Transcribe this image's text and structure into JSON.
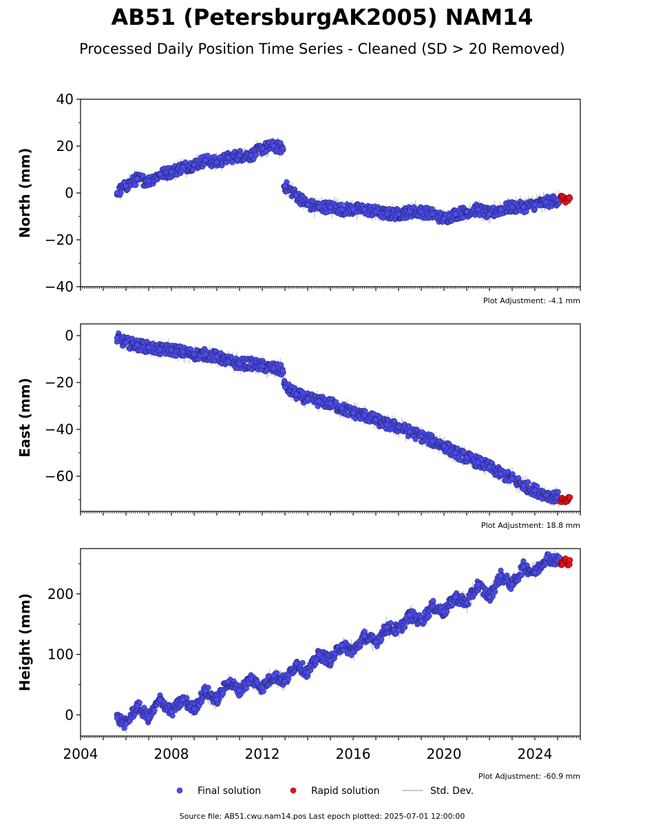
{
  "figure": {
    "title": "AB51 (PetersburgAK2005) NAM14",
    "subtitle": "Processed Daily Position Time Series - Cleaned (SD > 20 Removed)",
    "source_note": "Source file: AB51.cwu.nam14.pos  Last epoch plotted: 2025-07-01 12:00:00"
  },
  "legend": {
    "final": "Final solution",
    "rapid": "Rapid solution",
    "std": "Std. Dev."
  },
  "colors": {
    "final": "#4b4bf0",
    "final_edge": "#1a1a3a",
    "rapid": "#e8141b",
    "std": "#b8b8b8"
  },
  "chart_data": [
    {
      "type": "scatter",
      "ylabel": "North (mm)",
      "note": "Plot Adjustment: -4.1 mm",
      "xlim": [
        2004,
        2026
      ],
      "ylim": [
        -40,
        40
      ],
      "yticks": [
        -40,
        -20,
        0,
        20,
        40
      ],
      "xtick_labels": [],
      "grid": false,
      "series": [
        {
          "name": "Final solution",
          "x": [
            2005.6,
            2006.0,
            2006.5,
            2007.0,
            2007.5,
            2008.0,
            2008.5,
            2009.0,
            2009.5,
            2010.0,
            2010.5,
            2011.0,
            2011.5,
            2012.0,
            2012.5,
            2012.9,
            2013.0,
            2013.5,
            2014.0,
            2014.5,
            2015.0,
            2015.5,
            2016.0,
            2016.5,
            2017.0,
            2017.5,
            2018.0,
            2018.5,
            2019.0,
            2019.5,
            2020.0,
            2020.5,
            2021.0,
            2021.5,
            2022.0,
            2022.5,
            2023.0,
            2023.5,
            2024.0,
            2024.5,
            2025.0
          ],
          "y": [
            0,
            3,
            6,
            5,
            8,
            9,
            11,
            12,
            14,
            13,
            15,
            16,
            16,
            19,
            20,
            19,
            3,
            -1,
            -5,
            -6,
            -6,
            -7,
            -7,
            -7,
            -8,
            -9,
            -9,
            -8,
            -8,
            -9,
            -11,
            -9,
            -8,
            -7,
            -9,
            -7,
            -6,
            -6,
            -5,
            -4,
            -3
          ]
        },
        {
          "name": "Rapid solution",
          "x": [
            2025.2,
            2025.35,
            2025.5
          ],
          "y": [
            -2,
            -3,
            -3
          ]
        }
      ]
    },
    {
      "type": "scatter",
      "ylabel": "East (mm)",
      "note": "Plot Adjustment: 18.8 mm",
      "xlim": [
        2004,
        2026
      ],
      "ylim": [
        -75,
        5
      ],
      "yticks": [
        -60,
        -40,
        -20,
        0
      ],
      "xtick_labels": [],
      "grid": false,
      "series": [
        {
          "name": "Final solution",
          "x": [
            2005.6,
            2006.0,
            2006.5,
            2007.0,
            2007.5,
            2008.0,
            2008.5,
            2009.0,
            2009.5,
            2010.0,
            2010.5,
            2011.0,
            2011.5,
            2012.0,
            2012.5,
            2012.9,
            2013.0,
            2013.5,
            2014.0,
            2014.5,
            2015.0,
            2015.5,
            2016.0,
            2016.5,
            2017.0,
            2017.5,
            2018.0,
            2018.5,
            2019.0,
            2019.5,
            2020.0,
            2020.5,
            2021.0,
            2021.5,
            2022.0,
            2022.5,
            2023.0,
            2023.5,
            2024.0,
            2024.5,
            2025.0
          ],
          "y": [
            -1,
            -3,
            -4,
            -5,
            -6,
            -6,
            -7,
            -8,
            -8,
            -9,
            -11,
            -12,
            -12,
            -13,
            -14,
            -15,
            -22,
            -25,
            -27,
            -28,
            -29,
            -31,
            -33,
            -34,
            -36,
            -38,
            -39,
            -41,
            -43,
            -45,
            -47,
            -50,
            -52,
            -54,
            -56,
            -59,
            -61,
            -64,
            -66,
            -68,
            -69
          ]
        },
        {
          "name": "Rapid solution",
          "x": [
            2025.2,
            2025.35,
            2025.5
          ],
          "y": [
            -70,
            -71,
            -70
          ]
        }
      ]
    },
    {
      "type": "scatter",
      "ylabel": "Height (mm)",
      "note": "Plot Adjustment: -60.9 mm",
      "xlim": [
        2004,
        2026
      ],
      "ylim": [
        -35,
        275
      ],
      "yticks": [
        0,
        100,
        200
      ],
      "xtick_labels": [
        "2004",
        "2008",
        "2012",
        "2016",
        "2020",
        "2024"
      ],
      "xtick_values": [
        2004,
        2008,
        2012,
        2016,
        2020,
        2024
      ],
      "grid": false,
      "series": [
        {
          "name": "Final solution",
          "x": [
            2005.6,
            2006.0,
            2006.5,
            2007.0,
            2007.5,
            2008.0,
            2008.5,
            2009.0,
            2009.5,
            2010.0,
            2010.5,
            2011.0,
            2011.5,
            2012.0,
            2012.5,
            2013.0,
            2013.5,
            2014.0,
            2014.5,
            2015.0,
            2015.5,
            2016.0,
            2016.5,
            2017.0,
            2017.5,
            2018.0,
            2018.5,
            2019.0,
            2019.5,
            2020.0,
            2020.5,
            2021.0,
            2021.5,
            2022.0,
            2022.5,
            2023.0,
            2023.5,
            2024.0,
            2024.5,
            2025.0
          ],
          "y": [
            -5,
            -15,
            15,
            -5,
            25,
            5,
            25,
            10,
            40,
            25,
            55,
            40,
            60,
            45,
            65,
            55,
            85,
            70,
            100,
            90,
            115,
            105,
            130,
            120,
            145,
            140,
            165,
            155,
            180,
            170,
            195,
            185,
            215,
            195,
            230,
            215,
            245,
            235,
            260,
            255
          ]
        },
        {
          "name": "Rapid solution",
          "x": [
            2025.2,
            2025.35,
            2025.5
          ],
          "y": [
            250,
            255,
            252
          ]
        }
      ]
    }
  ]
}
